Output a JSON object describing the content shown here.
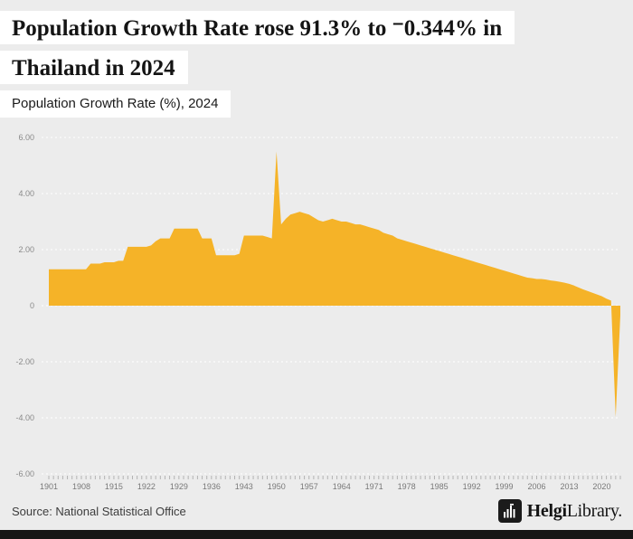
{
  "header": {
    "title_line1": "Population Growth Rate rose 91.3% to ⁻0.344% in",
    "title_line2": "Thailand in 2024",
    "subtitle": "Population Growth Rate (%), 2024"
  },
  "footer": {
    "source": "Source: National Statistical Office",
    "logo": {
      "icon": "bar-chart-logo-icon",
      "brand_bold": "Helgi",
      "brand_regular": "Library."
    }
  },
  "chart_data": {
    "type": "area",
    "title": "Population Growth Rate (%), 2024",
    "xlabel": "",
    "ylabel": "Population Growth Rate (%)",
    "year_start": 1901,
    "year_end": 2024,
    "values": [
      1.3,
      1.3,
      1.3,
      1.3,
      1.3,
      1.3,
      1.3,
      1.3,
      1.3,
      1.5,
      1.5,
      1.5,
      1.55,
      1.55,
      1.55,
      1.6,
      1.6,
      2.1,
      2.1,
      2.1,
      2.1,
      2.1,
      2.15,
      2.3,
      2.4,
      2.4,
      2.4,
      2.75,
      2.75,
      2.75,
      2.75,
      2.75,
      2.75,
      2.4,
      2.4,
      2.4,
      1.8,
      1.8,
      1.8,
      1.8,
      1.8,
      1.85,
      2.5,
      2.5,
      2.5,
      2.5,
      2.5,
      2.45,
      2.4,
      5.5,
      2.9,
      3.1,
      3.25,
      3.3,
      3.35,
      3.3,
      3.25,
      3.15,
      3.05,
      3.0,
      3.05,
      3.1,
      3.05,
      3.0,
      3.0,
      2.95,
      2.9,
      2.9,
      2.85,
      2.8,
      2.75,
      2.7,
      2.6,
      2.55,
      2.5,
      2.4,
      2.35,
      2.3,
      2.25,
      2.2,
      2.15,
      2.1,
      2.05,
      2.0,
      1.95,
      1.9,
      1.85,
      1.8,
      1.75,
      1.7,
      1.65,
      1.6,
      1.55,
      1.5,
      1.45,
      1.4,
      1.35,
      1.3,
      1.25,
      1.2,
      1.15,
      1.1,
      1.05,
      1.0,
      0.98,
      0.95,
      0.95,
      0.93,
      0.9,
      0.88,
      0.85,
      0.82,
      0.78,
      0.72,
      0.65,
      0.58,
      0.52,
      0.46,
      0.4,
      0.34,
      0.25,
      0.18,
      -3.97,
      -0.344
    ],
    "final_value": -0.344,
    "ylim": [
      -6,
      6
    ],
    "ytick_values": [
      6,
      4,
      2,
      0,
      -2,
      -4,
      -6
    ],
    "ytick_labels": [
      "6.00",
      "4.00",
      "2.00",
      "0",
      "-2.00",
      "-4.00",
      "-6.00"
    ],
    "xtick_years": [
      1901,
      1908,
      1915,
      1922,
      1929,
      1936,
      1943,
      1950,
      1957,
      1964,
      1971,
      1978,
      1985,
      1992,
      1999,
      2006,
      2013,
      2020
    ],
    "area_color": "#F5B328",
    "background_color": "#ececec",
    "grid": "dotted-white-horizontal",
    "legend": "none"
  }
}
